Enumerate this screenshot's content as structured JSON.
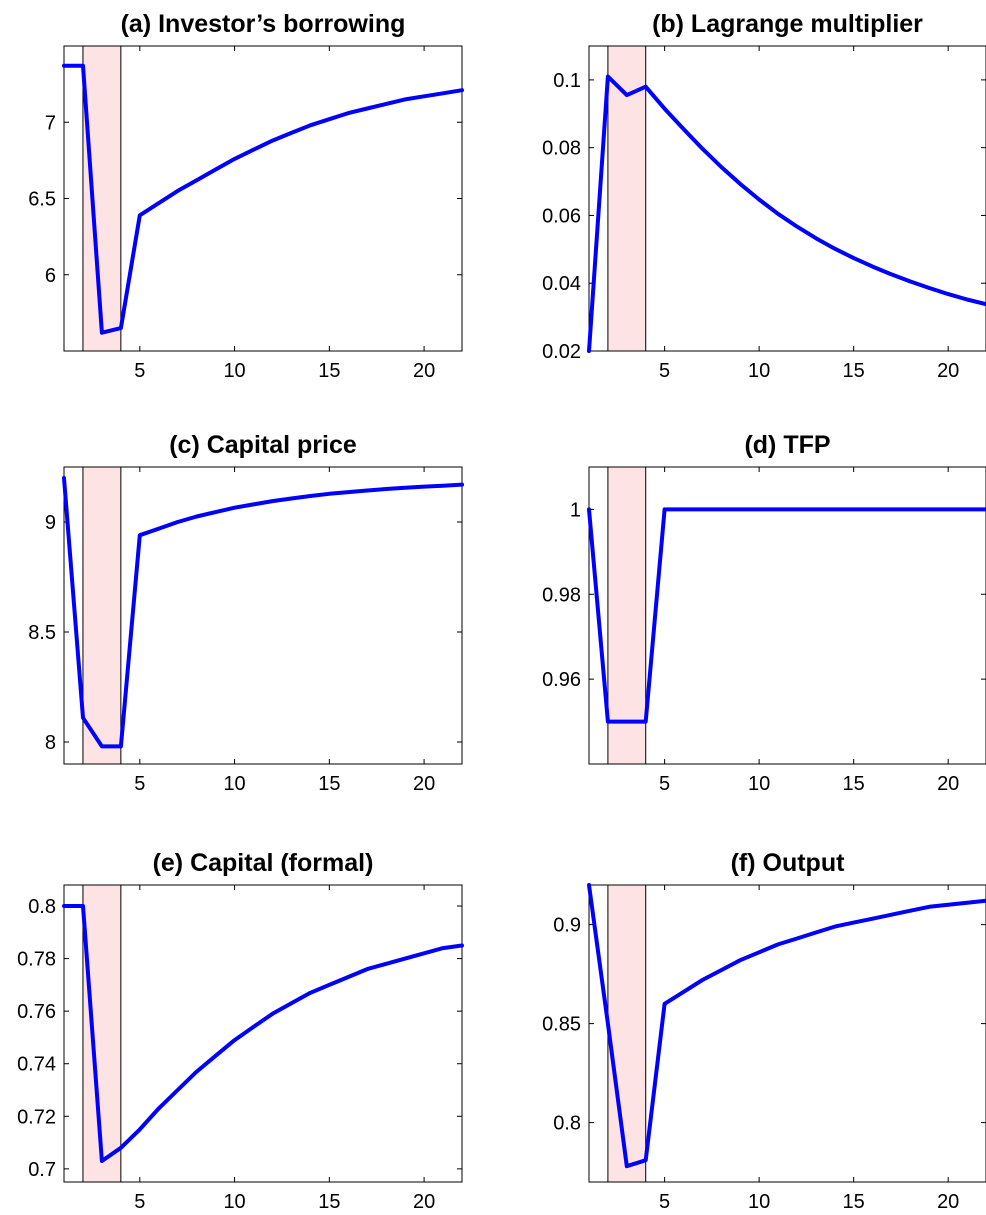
{
  "chart_data": [
    {
      "type": "line",
      "title": "(a) Investor’s borrowing",
      "xlim": [
        1,
        22
      ],
      "ylim": [
        5.5,
        7.5
      ],
      "xticks": [
        5,
        10,
        15,
        20
      ],
      "yticks": [
        6,
        6.5,
        7
      ],
      "shade": [
        2,
        4
      ],
      "grid": false,
      "series": [
        {
          "color": "#0000ff",
          "x": [
            1,
            2,
            3,
            4,
            5,
            6,
            7,
            8,
            9,
            10,
            11,
            12,
            13,
            14,
            15,
            16,
            17,
            18,
            19,
            20,
            21,
            22
          ],
          "y": [
            7.37,
            7.37,
            5.62,
            5.65,
            6.39,
            6.47,
            6.55,
            6.62,
            6.69,
            6.76,
            6.82,
            6.88,
            6.93,
            6.98,
            7.02,
            7.06,
            7.09,
            7.12,
            7.15,
            7.17,
            7.19,
            7.21
          ]
        }
      ]
    },
    {
      "type": "line",
      "title": "(b) Lagrange multiplier",
      "xlim": [
        1,
        22
      ],
      "ylim": [
        0.02,
        0.11
      ],
      "xticks": [
        5,
        10,
        15,
        20
      ],
      "yticks": [
        0.02,
        0.04,
        0.06,
        0.08,
        0.1
      ],
      "shade": [
        2,
        4
      ],
      "grid": false,
      "series": [
        {
          "color": "#0000ff",
          "x": [
            1,
            2,
            3,
            4,
            5,
            6,
            7,
            8,
            9,
            10,
            11,
            12,
            13,
            14,
            15,
            16,
            17,
            18,
            19,
            20,
            21,
            22
          ],
          "y": [
            0.02,
            0.101,
            0.0955,
            0.098,
            0.0915,
            0.0855,
            0.0797,
            0.0743,
            0.0693,
            0.0647,
            0.0605,
            0.0567,
            0.0533,
            0.0502,
            0.0474,
            0.0449,
            0.0426,
            0.0405,
            0.0386,
            0.0368,
            0.0352,
            0.0338
          ]
        }
      ]
    },
    {
      "type": "line",
      "title": "(c) Capital price",
      "xlim": [
        1,
        22
      ],
      "ylim": [
        7.9,
        9.25
      ],
      "xticks": [
        5,
        10,
        15,
        20
      ],
      "yticks": [
        8,
        8.5,
        9
      ],
      "shade": [
        2,
        4
      ],
      "grid": false,
      "series": [
        {
          "color": "#0000ff",
          "x": [
            1,
            2,
            3,
            4,
            5,
            6,
            7,
            8,
            9,
            10,
            11,
            12,
            13,
            14,
            15,
            16,
            17,
            18,
            19,
            20,
            21,
            22
          ],
          "y": [
            9.2,
            8.11,
            7.98,
            7.98,
            8.94,
            8.97,
            9.0,
            9.025,
            9.045,
            9.065,
            9.08,
            9.095,
            9.107,
            9.118,
            9.128,
            9.136,
            9.143,
            9.15,
            9.156,
            9.161,
            9.165,
            9.17
          ]
        }
      ]
    },
    {
      "type": "line",
      "title": "(d) TFP",
      "xlim": [
        1,
        22
      ],
      "ylim": [
        0.94,
        1.01
      ],
      "xticks": [
        5,
        10,
        15,
        20
      ],
      "yticks": [
        0.96,
        0.98,
        1
      ],
      "shade": [
        2,
        4
      ],
      "grid": false,
      "series": [
        {
          "color": "#0000ff",
          "x": [
            1,
            2,
            3,
            4,
            5,
            6,
            7,
            8,
            9,
            10,
            11,
            12,
            13,
            14,
            15,
            16,
            17,
            18,
            19,
            20,
            21,
            22
          ],
          "y": [
            1,
            0.95,
            0.95,
            0.95,
            1,
            1,
            1,
            1,
            1,
            1,
            1,
            1,
            1,
            1,
            1,
            1,
            1,
            1,
            1,
            1,
            1,
            1
          ]
        }
      ]
    },
    {
      "type": "line",
      "title": "(e) Capital (formal)",
      "xlim": [
        1,
        22
      ],
      "ylim": [
        0.695,
        0.808
      ],
      "xticks": [
        5,
        10,
        15,
        20
      ],
      "yticks": [
        0.7,
        0.72,
        0.74,
        0.76,
        0.78,
        0.8
      ],
      "shade": [
        2,
        4
      ],
      "grid": false,
      "series": [
        {
          "color": "#0000ff",
          "x": [
            1,
            2,
            3,
            4,
            5,
            6,
            7,
            8,
            9,
            10,
            11,
            12,
            13,
            14,
            15,
            16,
            17,
            18,
            19,
            20,
            21,
            22
          ],
          "y": [
            0.8,
            0.8,
            0.703,
            0.708,
            0.715,
            0.723,
            0.73,
            0.737,
            0.743,
            0.749,
            0.754,
            0.759,
            0.763,
            0.767,
            0.77,
            0.773,
            0.776,
            0.778,
            0.78,
            0.782,
            0.784,
            0.785
          ]
        }
      ]
    },
    {
      "type": "line",
      "title": "(f) Output",
      "xlim": [
        1,
        22
      ],
      "ylim": [
        0.77,
        0.92
      ],
      "xticks": [
        5,
        10,
        15,
        20
      ],
      "yticks": [
        0.8,
        0.85,
        0.9
      ],
      "shade": [
        2,
        4
      ],
      "grid": false,
      "series": [
        {
          "color": "#0000ff",
          "x": [
            1,
            2,
            3,
            4,
            5,
            6,
            7,
            8,
            9,
            10,
            11,
            12,
            13,
            14,
            15,
            16,
            17,
            18,
            19,
            20,
            21,
            22
          ],
          "y": [
            0.92,
            0.85,
            0.778,
            0.781,
            0.86,
            0.866,
            0.872,
            0.877,
            0.882,
            0.886,
            0.89,
            0.893,
            0.896,
            0.899,
            0.901,
            0.903,
            0.905,
            0.907,
            0.909,
            0.91,
            0.911,
            0.912
          ]
        }
      ]
    }
  ]
}
